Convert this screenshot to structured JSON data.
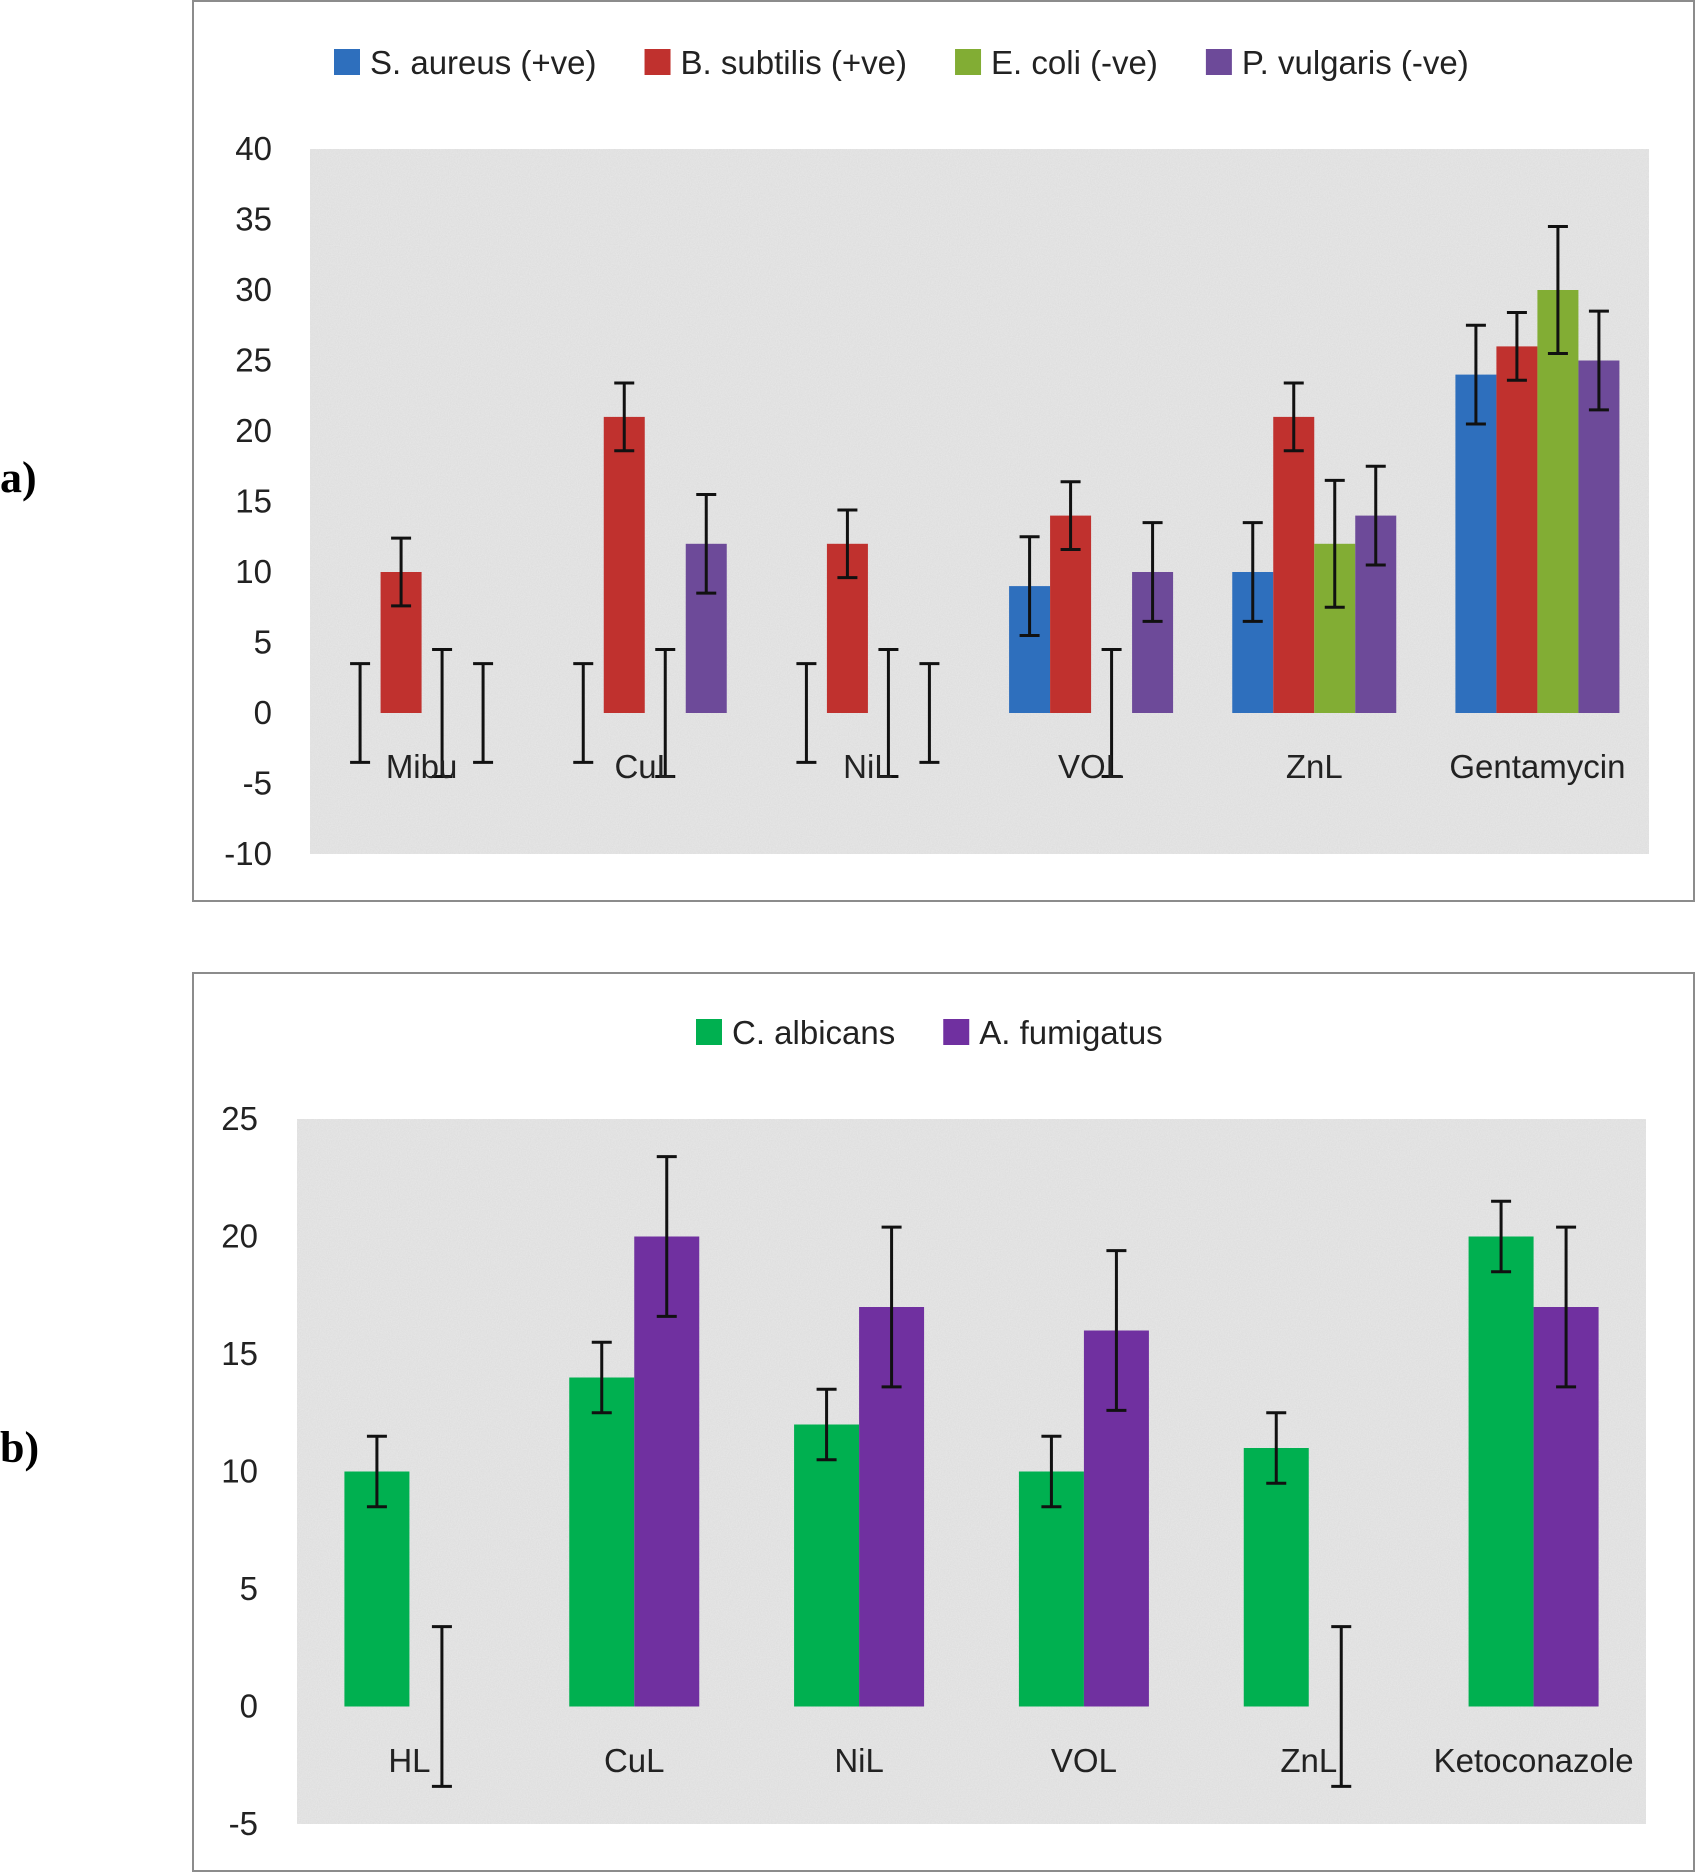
{
  "panels": {
    "a_label": "a)",
    "b_label": "b)"
  },
  "chart_data": [
    {
      "type": "bar",
      "title": "",
      "xlabel": "",
      "ylabel": "",
      "ylim": [
        -10,
        40
      ],
      "yticks": [
        40,
        35,
        30,
        25,
        20,
        15,
        10,
        5,
        0,
        -5,
        -10
      ],
      "legend_position": "top",
      "categories": [
        "Mibu",
        "CuL",
        "NiL",
        "VOL",
        "ZnL",
        "Gentamycin"
      ],
      "series": [
        {
          "name": "S. aureus (+ve)",
          "color": "#2e6fbd",
          "values": [
            0,
            0,
            0,
            9,
            10,
            24
          ],
          "errors": [
            3.5,
            3.5,
            3.5,
            3.5,
            3.5,
            3.5
          ]
        },
        {
          "name": "B. subtilis (+ve)",
          "color": "#c0312e",
          "values": [
            10,
            21,
            12,
            14,
            21,
            26
          ],
          "errors": [
            2.4,
            2.4,
            2.4,
            2.4,
            2.4,
            2.4
          ]
        },
        {
          "name": "E. coli (-ve)",
          "color": "#82ad34",
          "values": [
            0,
            0,
            0,
            0,
            12,
            30
          ],
          "errors": [
            4.5,
            4.5,
            4.5,
            4.5,
            4.5,
            4.5
          ]
        },
        {
          "name": "P. vulgaris (-ve)",
          "color": "#6d4a99",
          "values": [
            0,
            12,
            0,
            10,
            14,
            25
          ],
          "errors": [
            3.5,
            3.5,
            3.5,
            3.5,
            3.5,
            3.5
          ]
        }
      ]
    },
    {
      "type": "bar",
      "title": "",
      "xlabel": "",
      "ylabel": "",
      "ylim": [
        -5,
        25
      ],
      "yticks": [
        25,
        20,
        15,
        10,
        5,
        0,
        -5
      ],
      "legend_position": "top",
      "categories": [
        "HL",
        "CuL",
        "NiL",
        "VOL",
        "ZnL",
        "Ketoconazole"
      ],
      "series": [
        {
          "name": "C. albicans",
          "color": "#00b050",
          "values": [
            10,
            14,
            12,
            10,
            11,
            20
          ],
          "errors": [
            1.5,
            1.5,
            1.5,
            1.5,
            1.5,
            1.5
          ]
        },
        {
          "name": "A. fumigatus",
          "color": "#7030a0",
          "values": [
            0,
            20,
            17,
            16,
            0,
            17
          ],
          "errors": [
            3.4,
            3.4,
            3.4,
            3.4,
            3.4,
            3.4
          ]
        }
      ]
    }
  ]
}
